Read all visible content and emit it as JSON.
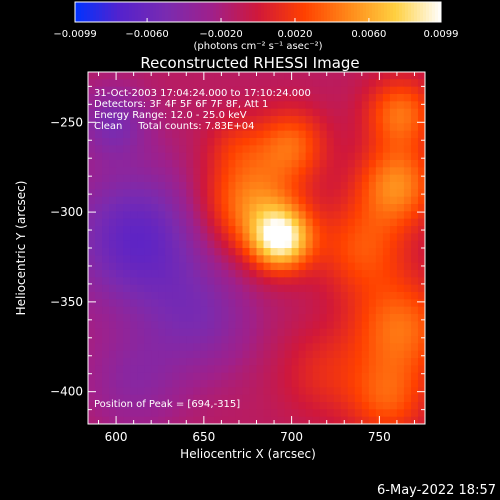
{
  "chart_data": {
    "type": "heatmap",
    "title": "Reconstructed RHESSI Image",
    "xlabel": "Heliocentric X (arcsec)",
    "ylabel": "Heliocentric Y (arcsec)",
    "xlim": [
      584,
      776
    ],
    "ylim": [
      -418,
      -222
    ],
    "x_ticks": [
      600,
      650,
      700,
      750
    ],
    "x_tick_labels": [
      "600",
      "650",
      "700",
      "750"
    ],
    "y_ticks": [
      -250,
      -300,
      -350,
      -400
    ],
    "y_tick_labels": [
      "−250",
      "−300",
      "−350",
      "−400"
    ],
    "colorbar": {
      "min": -0.0099,
      "max": 0.0099,
      "ticks": [
        -0.0099,
        -0.006,
        -0.002,
        0.002,
        0.006,
        0.0099
      ],
      "tick_labels": [
        "−0.0099",
        "−0.0060",
        "−0.0020",
        "0.0020",
        "0.0060",
        "0.0099"
      ],
      "unit_label": "(photons cm⁻² s⁻¹ asec⁻²)",
      "colormap": [
        "#0033ff",
        "#5522cc",
        "#7a2bb0",
        "#a0208a",
        "#d0183a",
        "#ff4000",
        "#ff8a1a",
        "#ffd040",
        "#ffffff"
      ]
    },
    "annotations": [
      "31-Oct-2003 17:04:24.000 to 17:10:24.000",
      "Detectors: 3F 4F 5F 6F 7F 8F, Att 1",
      "Energy Range: 12.0 - 25.0 keV",
      "Clean     Total counts: 7.83E+04"
    ],
    "peak_label": "Position of Peak = [694,-315]",
    "peak": {
      "x": 694,
      "y": -315
    },
    "sources": [
      {
        "x": 694,
        "y": -315,
        "sigma": 12,
        "amp": 0.0099
      },
      {
        "x": 676,
        "y": -295,
        "sigma": 20,
        "amp": 0.006
      },
      {
        "x": 700,
        "y": -262,
        "sigma": 14,
        "amp": 0.0045
      },
      {
        "x": 668,
        "y": -262,
        "sigma": 12,
        "amp": 0.0018
      },
      {
        "x": 760,
        "y": -285,
        "sigma": 16,
        "amp": 0.006
      },
      {
        "x": 762,
        "y": -245,
        "sigma": 14,
        "amp": 0.0052
      },
      {
        "x": 740,
        "y": -320,
        "sigma": 18,
        "amp": 0.004
      },
      {
        "x": 762,
        "y": -365,
        "sigma": 20,
        "amp": 0.0052
      },
      {
        "x": 755,
        "y": -405,
        "sigma": 16,
        "amp": 0.004
      },
      {
        "x": 718,
        "y": -390,
        "sigma": 18,
        "amp": 0.0022
      },
      {
        "x": 612,
        "y": -315,
        "sigma": 28,
        "amp": -0.0055
      },
      {
        "x": 648,
        "y": -360,
        "sigma": 22,
        "amp": -0.003
      },
      {
        "x": 598,
        "y": -250,
        "sigma": 14,
        "amp": -0.0035
      },
      {
        "x": 610,
        "y": -395,
        "sigma": 20,
        "amp": -0.0025
      }
    ],
    "background": -0.0012
  },
  "footer": {
    "timestamp": "6-May-2022 18:57"
  }
}
